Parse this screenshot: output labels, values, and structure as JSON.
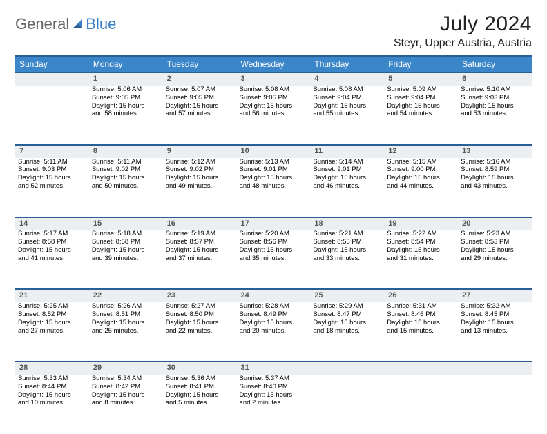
{
  "logo": {
    "part1": "General",
    "part2": "Blue"
  },
  "title": "July 2024",
  "location": "Steyr, Upper Austria, Austria",
  "colors": {
    "header_bg": "#3a86c8",
    "header_border": "#2a5f96",
    "daynum_bg": "#eceff1",
    "text": "#000000",
    "logo_gray": "#666666",
    "logo_blue": "#3a7ec4"
  },
  "weekdays": [
    "Sunday",
    "Monday",
    "Tuesday",
    "Wednesday",
    "Thursday",
    "Friday",
    "Saturday"
  ],
  "weeks": [
    {
      "nums": [
        "",
        "1",
        "2",
        "3",
        "4",
        "5",
        "6"
      ],
      "cells": [
        null,
        {
          "sr": "Sunrise: 5:06 AM",
          "ss": "Sunset: 9:05 PM",
          "d1": "Daylight: 15 hours",
          "d2": "and 58 minutes."
        },
        {
          "sr": "Sunrise: 5:07 AM",
          "ss": "Sunset: 9:05 PM",
          "d1": "Daylight: 15 hours",
          "d2": "and 57 minutes."
        },
        {
          "sr": "Sunrise: 5:08 AM",
          "ss": "Sunset: 9:05 PM",
          "d1": "Daylight: 15 hours",
          "d2": "and 56 minutes."
        },
        {
          "sr": "Sunrise: 5:08 AM",
          "ss": "Sunset: 9:04 PM",
          "d1": "Daylight: 15 hours",
          "d2": "and 55 minutes."
        },
        {
          "sr": "Sunrise: 5:09 AM",
          "ss": "Sunset: 9:04 PM",
          "d1": "Daylight: 15 hours",
          "d2": "and 54 minutes."
        },
        {
          "sr": "Sunrise: 5:10 AM",
          "ss": "Sunset: 9:03 PM",
          "d1": "Daylight: 15 hours",
          "d2": "and 53 minutes."
        }
      ]
    },
    {
      "nums": [
        "7",
        "8",
        "9",
        "10",
        "11",
        "12",
        "13"
      ],
      "cells": [
        {
          "sr": "Sunrise: 5:11 AM",
          "ss": "Sunset: 9:03 PM",
          "d1": "Daylight: 15 hours",
          "d2": "and 52 minutes."
        },
        {
          "sr": "Sunrise: 5:11 AM",
          "ss": "Sunset: 9:02 PM",
          "d1": "Daylight: 15 hours",
          "d2": "and 50 minutes."
        },
        {
          "sr": "Sunrise: 5:12 AM",
          "ss": "Sunset: 9:02 PM",
          "d1": "Daylight: 15 hours",
          "d2": "and 49 minutes."
        },
        {
          "sr": "Sunrise: 5:13 AM",
          "ss": "Sunset: 9:01 PM",
          "d1": "Daylight: 15 hours",
          "d2": "and 48 minutes."
        },
        {
          "sr": "Sunrise: 5:14 AM",
          "ss": "Sunset: 9:01 PM",
          "d1": "Daylight: 15 hours",
          "d2": "and 46 minutes."
        },
        {
          "sr": "Sunrise: 5:15 AM",
          "ss": "Sunset: 9:00 PM",
          "d1": "Daylight: 15 hours",
          "d2": "and 44 minutes."
        },
        {
          "sr": "Sunrise: 5:16 AM",
          "ss": "Sunset: 8:59 PM",
          "d1": "Daylight: 15 hours",
          "d2": "and 43 minutes."
        }
      ]
    },
    {
      "nums": [
        "14",
        "15",
        "16",
        "17",
        "18",
        "19",
        "20"
      ],
      "cells": [
        {
          "sr": "Sunrise: 5:17 AM",
          "ss": "Sunset: 8:58 PM",
          "d1": "Daylight: 15 hours",
          "d2": "and 41 minutes."
        },
        {
          "sr": "Sunrise: 5:18 AM",
          "ss": "Sunset: 8:58 PM",
          "d1": "Daylight: 15 hours",
          "d2": "and 39 minutes."
        },
        {
          "sr": "Sunrise: 5:19 AM",
          "ss": "Sunset: 8:57 PM",
          "d1": "Daylight: 15 hours",
          "d2": "and 37 minutes."
        },
        {
          "sr": "Sunrise: 5:20 AM",
          "ss": "Sunset: 8:56 PM",
          "d1": "Daylight: 15 hours",
          "d2": "and 35 minutes."
        },
        {
          "sr": "Sunrise: 5:21 AM",
          "ss": "Sunset: 8:55 PM",
          "d1": "Daylight: 15 hours",
          "d2": "and 33 minutes."
        },
        {
          "sr": "Sunrise: 5:22 AM",
          "ss": "Sunset: 8:54 PM",
          "d1": "Daylight: 15 hours",
          "d2": "and 31 minutes."
        },
        {
          "sr": "Sunrise: 5:23 AM",
          "ss": "Sunset: 8:53 PM",
          "d1": "Daylight: 15 hours",
          "d2": "and 29 minutes."
        }
      ]
    },
    {
      "nums": [
        "21",
        "22",
        "23",
        "24",
        "25",
        "26",
        "27"
      ],
      "cells": [
        {
          "sr": "Sunrise: 5:25 AM",
          "ss": "Sunset: 8:52 PM",
          "d1": "Daylight: 15 hours",
          "d2": "and 27 minutes."
        },
        {
          "sr": "Sunrise: 5:26 AM",
          "ss": "Sunset: 8:51 PM",
          "d1": "Daylight: 15 hours",
          "d2": "and 25 minutes."
        },
        {
          "sr": "Sunrise: 5:27 AM",
          "ss": "Sunset: 8:50 PM",
          "d1": "Daylight: 15 hours",
          "d2": "and 22 minutes."
        },
        {
          "sr": "Sunrise: 5:28 AM",
          "ss": "Sunset: 8:49 PM",
          "d1": "Daylight: 15 hours",
          "d2": "and 20 minutes."
        },
        {
          "sr": "Sunrise: 5:29 AM",
          "ss": "Sunset: 8:47 PM",
          "d1": "Daylight: 15 hours",
          "d2": "and 18 minutes."
        },
        {
          "sr": "Sunrise: 5:31 AM",
          "ss": "Sunset: 8:46 PM",
          "d1": "Daylight: 15 hours",
          "d2": "and 15 minutes."
        },
        {
          "sr": "Sunrise: 5:32 AM",
          "ss": "Sunset: 8:45 PM",
          "d1": "Daylight: 15 hours",
          "d2": "and 13 minutes."
        }
      ]
    },
    {
      "nums": [
        "28",
        "29",
        "30",
        "31",
        "",
        "",
        ""
      ],
      "cells": [
        {
          "sr": "Sunrise: 5:33 AM",
          "ss": "Sunset: 8:44 PM",
          "d1": "Daylight: 15 hours",
          "d2": "and 10 minutes."
        },
        {
          "sr": "Sunrise: 5:34 AM",
          "ss": "Sunset: 8:42 PM",
          "d1": "Daylight: 15 hours",
          "d2": "and 8 minutes."
        },
        {
          "sr": "Sunrise: 5:36 AM",
          "ss": "Sunset: 8:41 PM",
          "d1": "Daylight: 15 hours",
          "d2": "and 5 minutes."
        },
        {
          "sr": "Sunrise: 5:37 AM",
          "ss": "Sunset: 8:40 PM",
          "d1": "Daylight: 15 hours",
          "d2": "and 2 minutes."
        },
        null,
        null,
        null
      ]
    }
  ]
}
